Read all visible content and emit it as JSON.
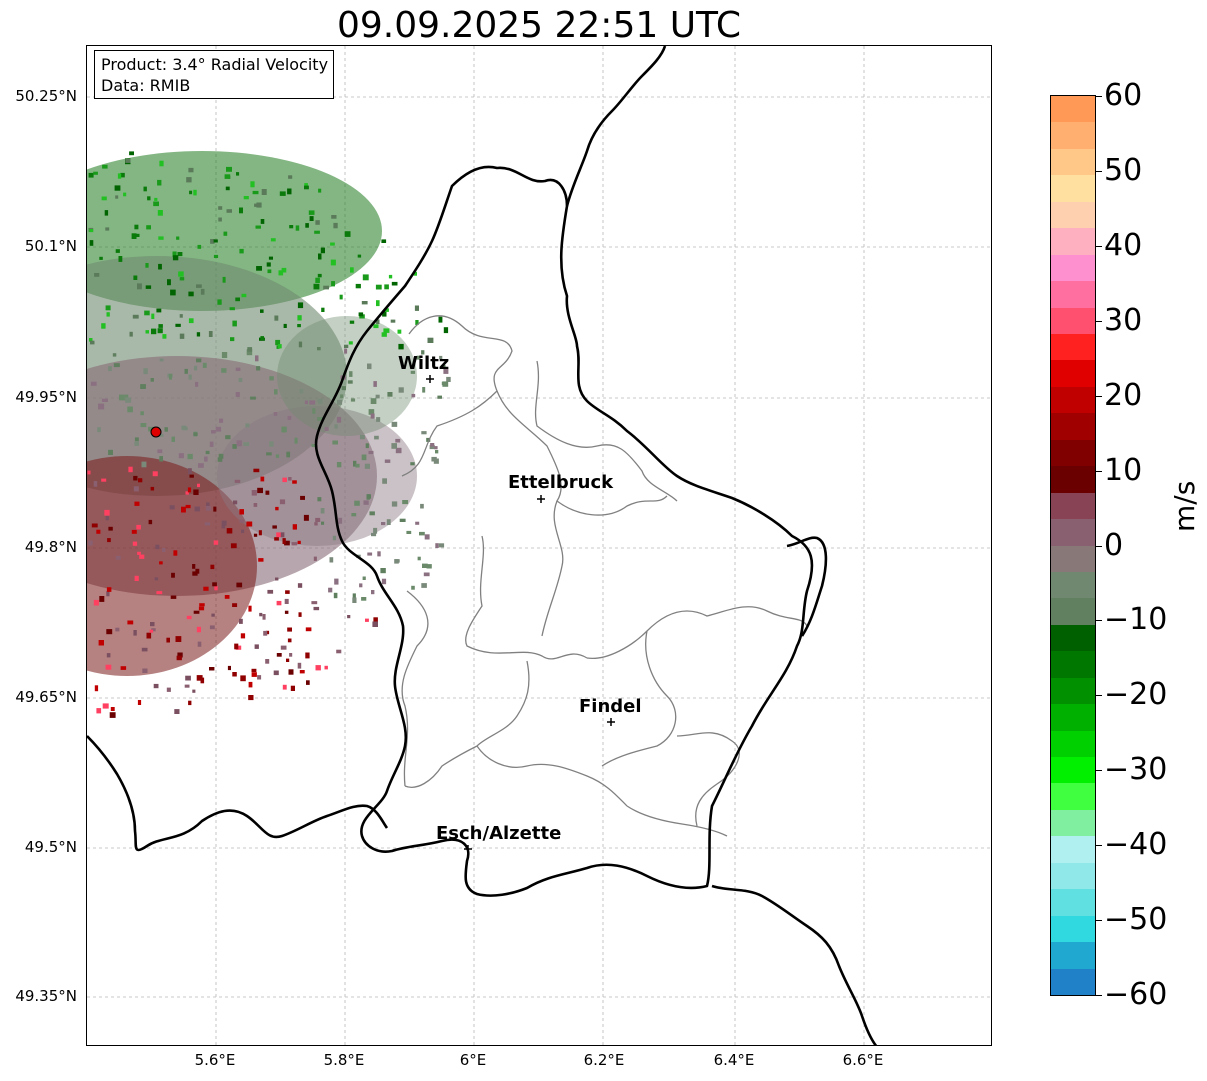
{
  "title": "09.09.2025 22:51 UTC",
  "info": {
    "product": "Product: 3.4° Radial Velocity",
    "data_source": "Data: RMIB"
  },
  "lat_ticks": [
    "50.25°N",
    "50.1°N",
    "49.95°N",
    "49.8°N",
    "49.65°N",
    "49.5°N",
    "49.35°N"
  ],
  "lon_ticks": [
    "5.6°E",
    "5.8°E",
    "6°E",
    "6.2°E",
    "6.4°E",
    "6.6°E"
  ],
  "cities": [
    {
      "name": "Wiltz"
    },
    {
      "name": "Ettelbruck"
    },
    {
      "name": "Findel"
    },
    {
      "name": "Esch/Alzette"
    }
  ],
  "radar_site": {
    "name": "radar-site",
    "color": "#e00000"
  },
  "colorbar": {
    "unit": "m/s",
    "ticks": [
      "60",
      "50",
      "40",
      "30",
      "20",
      "10",
      "0",
      "−10",
      "−20",
      "−30",
      "−40",
      "−50",
      "−60"
    ],
    "range": [
      -60,
      60
    ],
    "colors_top_to_bottom": [
      "#ff9955",
      "#ffb070",
      "#ffc888",
      "#ffe0a0",
      "#ffd0b0",
      "#ffb0c0",
      "#ff90d0",
      "#ff70a0",
      "#ff5070",
      "#ff2020",
      "#e00000",
      "#c00000",
      "#a00000",
      "#800000",
      "#6a0000",
      "#884455",
      "#886070",
      "#887878",
      "#708870",
      "#608060",
      "#006000",
      "#007800",
      "#009000",
      "#00b000",
      "#00d000",
      "#00f000",
      "#40ff40",
      "#80f0a0",
      "#b0f0f0",
      "#90e8e8",
      "#60e0e0",
      "#30d8e0",
      "#20a8d0",
      "#2080c8"
    ]
  },
  "colors": {
    "border_country": "#000000",
    "border_canton": "#808080",
    "grid": "#b0b0b0"
  }
}
